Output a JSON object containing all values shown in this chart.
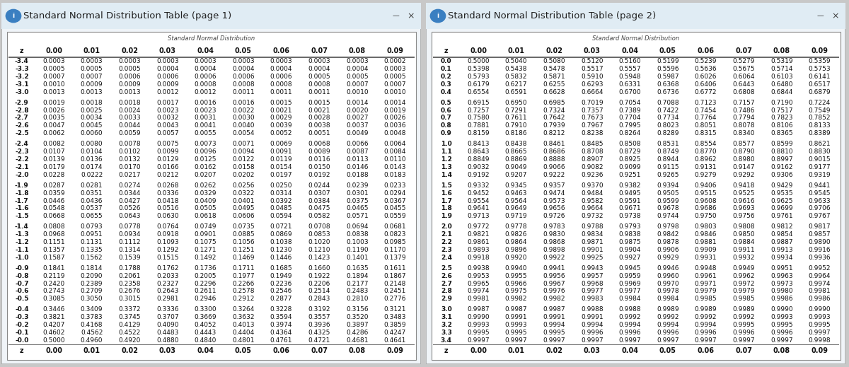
{
  "title1": "Standard Normal Distribution Table (page 1)",
  "title2": "Standard Normal Distribution Table (page 2)",
  "subtitle": "Standard Normal Distribution",
  "col_headers": [
    "z",
    "0.00",
    "0.01",
    "0.02",
    "0.03",
    "0.04",
    "0.05",
    "0.06",
    "0.07",
    "0.08",
    "0.09"
  ],
  "page1_rows": [
    [
      "-3.4",
      "0.0003",
      "0.0003",
      "0.0003",
      "0.0003",
      "0.0003",
      "0.0003",
      "0.0003",
      "0.0003",
      "0.0003",
      "0.0002"
    ],
    [
      "-3.3",
      "0.0005",
      "0.0005",
      "0.0005",
      "0.0004",
      "0.0004",
      "0.0004",
      "0.0004",
      "0.0004",
      "0.0004",
      "0.0003"
    ],
    [
      "-3.2",
      "0.0007",
      "0.0007",
      "0.0006",
      "0.0006",
      "0.0006",
      "0.0006",
      "0.0006",
      "0.0005",
      "0.0005",
      "0.0005"
    ],
    [
      "-3.1",
      "0.0010",
      "0.0009",
      "0.0009",
      "0.0009",
      "0.0008",
      "0.0008",
      "0.0008",
      "0.0008",
      "0.0007",
      "0.0007"
    ],
    [
      "-3.0",
      "0.0013",
      "0.0013",
      "0.0013",
      "0.0012",
      "0.0012",
      "0.0011",
      "0.0011",
      "0.0011",
      "0.0010",
      "0.0010"
    ],
    [
      "-2.9",
      "0.0019",
      "0.0018",
      "0.0018",
      "0.0017",
      "0.0016",
      "0.0016",
      "0.0015",
      "0.0015",
      "0.0014",
      "0.0014"
    ],
    [
      "-2.8",
      "0.0026",
      "0.0025",
      "0.0024",
      "0.0023",
      "0.0023",
      "0.0022",
      "0.0021",
      "0.0021",
      "0.0020",
      "0.0019"
    ],
    [
      "-2.7",
      "0.0035",
      "0.0034",
      "0.0033",
      "0.0032",
      "0.0031",
      "0.0030",
      "0.0029",
      "0.0028",
      "0.0027",
      "0.0026"
    ],
    [
      "-2.6",
      "0.0047",
      "0.0045",
      "0.0044",
      "0.0043",
      "0.0041",
      "0.0040",
      "0.0039",
      "0.0038",
      "0.0037",
      "0.0036"
    ],
    [
      "-2.5",
      "0.0062",
      "0.0060",
      "0.0059",
      "0.0057",
      "0.0055",
      "0.0054",
      "0.0052",
      "0.0051",
      "0.0049",
      "0.0048"
    ],
    [
      "-2.4",
      "0.0082",
      "0.0080",
      "0.0078",
      "0.0075",
      "0.0073",
      "0.0071",
      "0.0069",
      "0.0068",
      "0.0066",
      "0.0064"
    ],
    [
      "-2.3",
      "0.0107",
      "0.0104",
      "0.0102",
      "0.0099",
      "0.0096",
      "0.0094",
      "0.0091",
      "0.0089",
      "0.0087",
      "0.0084"
    ],
    [
      "-2.2",
      "0.0139",
      "0.0136",
      "0.0132",
      "0.0129",
      "0.0125",
      "0.0122",
      "0.0119",
      "0.0116",
      "0.0113",
      "0.0110"
    ],
    [
      "-2.1",
      "0.0179",
      "0.0174",
      "0.0170",
      "0.0166",
      "0.0162",
      "0.0158",
      "0.0154",
      "0.0150",
      "0.0146",
      "0.0143"
    ],
    [
      "-2.0",
      "0.0228",
      "0.0222",
      "0.0217",
      "0.0212",
      "0.0207",
      "0.0202",
      "0.0197",
      "0.0192",
      "0.0188",
      "0.0183"
    ],
    [
      "-1.9",
      "0.0287",
      "0.0281",
      "0.0274",
      "0.0268",
      "0.0262",
      "0.0256",
      "0.0250",
      "0.0244",
      "0.0239",
      "0.0233"
    ],
    [
      "-1.8",
      "0.0359",
      "0.0351",
      "0.0344",
      "0.0336",
      "0.0329",
      "0.0322",
      "0.0314",
      "0.0307",
      "0.0301",
      "0.0294"
    ],
    [
      "-1.7",
      "0.0446",
      "0.0436",
      "0.0427",
      "0.0418",
      "0.0409",
      "0.0401",
      "0.0392",
      "0.0384",
      "0.0375",
      "0.0367"
    ],
    [
      "-1.6",
      "0.0548",
      "0.0537",
      "0.0526",
      "0.0516",
      "0.0505",
      "0.0495",
      "0.0485",
      "0.0475",
      "0.0465",
      "0.0455"
    ],
    [
      "-1.5",
      "0.0668",
      "0.0655",
      "0.0643",
      "0.0630",
      "0.0618",
      "0.0606",
      "0.0594",
      "0.0582",
      "0.0571",
      "0.0559"
    ],
    [
      "-1.4",
      "0.0808",
      "0.0793",
      "0.0778",
      "0.0764",
      "0.0749",
      "0.0735",
      "0.0721",
      "0.0708",
      "0.0694",
      "0.0681"
    ],
    [
      "-1.3",
      "0.0968",
      "0.0951",
      "0.0934",
      "0.0918",
      "0.0901",
      "0.0885",
      "0.0869",
      "0.0853",
      "0.0838",
      "0.0823"
    ],
    [
      "-1.2",
      "0.1151",
      "0.1131",
      "0.1112",
      "0.1093",
      "0.1075",
      "0.1056",
      "0.1038",
      "0.1020",
      "0.1003",
      "0.0985"
    ],
    [
      "-1.1",
      "0.1357",
      "0.1335",
      "0.1314",
      "0.1292",
      "0.1271",
      "0.1251",
      "0.1230",
      "0.1210",
      "0.1190",
      "0.1170"
    ],
    [
      "-1.0",
      "0.1587",
      "0.1562",
      "0.1539",
      "0.1515",
      "0.1492",
      "0.1469",
      "0.1446",
      "0.1423",
      "0.1401",
      "0.1379"
    ],
    [
      "-0.9",
      "0.1841",
      "0.1814",
      "0.1788",
      "0.1762",
      "0.1736",
      "0.1711",
      "0.1685",
      "0.1660",
      "0.1635",
      "0.1611"
    ],
    [
      "-0.8",
      "0.2119",
      "0.2090",
      "0.2061",
      "0.2033",
      "0.2005",
      "0.1977",
      "0.1949",
      "0.1922",
      "0.1894",
      "0.1867"
    ],
    [
      "-0.7",
      "0.2420",
      "0.2389",
      "0.2358",
      "0.2327",
      "0.2296",
      "0.2266",
      "0.2236",
      "0.2206",
      "0.2177",
      "0.2148"
    ],
    [
      "-0.6",
      "0.2743",
      "0.2709",
      "0.2676",
      "0.2643",
      "0.2611",
      "0.2578",
      "0.2546",
      "0.2514",
      "0.2483",
      "0.2451"
    ],
    [
      "-0.5",
      "0.3085",
      "0.3050",
      "0.3015",
      "0.2981",
      "0.2946",
      "0.2912",
      "0.2877",
      "0.2843",
      "0.2810",
      "0.2776"
    ],
    [
      "-0.4",
      "0.3446",
      "0.3409",
      "0.3372",
      "0.3336",
      "0.3300",
      "0.3264",
      "0.3228",
      "0.3192",
      "0.3156",
      "0.3121"
    ],
    [
      "-0.3",
      "0.3821",
      "0.3783",
      "0.3745",
      "0.3707",
      "0.3669",
      "0.3632",
      "0.3594",
      "0.3557",
      "0.3520",
      "0.3483"
    ],
    [
      "-0.2",
      "0.4207",
      "0.4168",
      "0.4129",
      "0.4090",
      "0.4052",
      "0.4013",
      "0.3974",
      "0.3936",
      "0.3897",
      "0.3859"
    ],
    [
      "-0.1",
      "0.4602",
      "0.4562",
      "0.4522",
      "0.4483",
      "0.4443",
      "0.4404",
      "0.4364",
      "0.4325",
      "0.4286",
      "0.4247"
    ],
    [
      "-0.0",
      "0.5000",
      "0.4960",
      "0.4920",
      "0.4880",
      "0.4840",
      "0.4801",
      "0.4761",
      "0.4721",
      "0.4681",
      "0.4641"
    ]
  ],
  "page2_rows": [
    [
      "0.0",
      "0.5000",
      "0.5040",
      "0.5080",
      "0.5120",
      "0.5160",
      "0.5199",
      "0.5239",
      "0.5279",
      "0.5319",
      "0.5359"
    ],
    [
      "0.1",
      "0.5398",
      "0.5438",
      "0.5478",
      "0.5517",
      "0.5557",
      "0.5596",
      "0.5636",
      "0.5675",
      "0.5714",
      "0.5753"
    ],
    [
      "0.2",
      "0.5793",
      "0.5832",
      "0.5871",
      "0.5910",
      "0.5948",
      "0.5987",
      "0.6026",
      "0.6064",
      "0.6103",
      "0.6141"
    ],
    [
      "0.3",
      "0.6179",
      "0.6217",
      "0.6255",
      "0.6293",
      "0.6331",
      "0.6368",
      "0.6406",
      "0.6443",
      "0.6480",
      "0.6517"
    ],
    [
      "0.4",
      "0.6554",
      "0.6591",
      "0.6628",
      "0.6664",
      "0.6700",
      "0.6736",
      "0.6772",
      "0.6808",
      "0.6844",
      "0.6879"
    ],
    [
      "0.5",
      "0.6915",
      "0.6950",
      "0.6985",
      "0.7019",
      "0.7054",
      "0.7088",
      "0.7123",
      "0.7157",
      "0.7190",
      "0.7224"
    ],
    [
      "0.6",
      "0.7257",
      "0.7291",
      "0.7324",
      "0.7357",
      "0.7389",
      "0.7422",
      "0.7454",
      "0.7486",
      "0.7517",
      "0.7549"
    ],
    [
      "0.7",
      "0.7580",
      "0.7611",
      "0.7642",
      "0.7673",
      "0.7704",
      "0.7734",
      "0.7764",
      "0.7794",
      "0.7823",
      "0.7852"
    ],
    [
      "0.8",
      "0.7881",
      "0.7910",
      "0.7939",
      "0.7967",
      "0.7995",
      "0.8023",
      "0.8051",
      "0.8078",
      "0.8106",
      "0.8133"
    ],
    [
      "0.9",
      "0.8159",
      "0.8186",
      "0.8212",
      "0.8238",
      "0.8264",
      "0.8289",
      "0.8315",
      "0.8340",
      "0.8365",
      "0.8389"
    ],
    [
      "1.0",
      "0.8413",
      "0.8438",
      "0.8461",
      "0.8485",
      "0.8508",
      "0.8531",
      "0.8554",
      "0.8577",
      "0.8599",
      "0.8621"
    ],
    [
      "1.1",
      "0.8643",
      "0.8665",
      "0.8686",
      "0.8708",
      "0.8729",
      "0.8749",
      "0.8770",
      "0.8790",
      "0.8810",
      "0.8830"
    ],
    [
      "1.2",
      "0.8849",
      "0.8869",
      "0.8888",
      "0.8907",
      "0.8925",
      "0.8944",
      "0.8962",
      "0.8980",
      "0.8997",
      "0.9015"
    ],
    [
      "1.3",
      "0.9032",
      "0.9049",
      "0.9066",
      "0.9082",
      "0.9099",
      "0.9115",
      "0.9131",
      "0.9147",
      "0.9162",
      "0.9177"
    ],
    [
      "1.4",
      "0.9192",
      "0.9207",
      "0.9222",
      "0.9236",
      "0.9251",
      "0.9265",
      "0.9279",
      "0.9292",
      "0.9306",
      "0.9319"
    ],
    [
      "1.5",
      "0.9332",
      "0.9345",
      "0.9357",
      "0.9370",
      "0.9382",
      "0.9394",
      "0.9406",
      "0.9418",
      "0.9429",
      "0.9441"
    ],
    [
      "1.6",
      "0.9452",
      "0.9463",
      "0.9474",
      "0.9484",
      "0.9495",
      "0.9505",
      "0.9515",
      "0.9525",
      "0.9535",
      "0.9545"
    ],
    [
      "1.7",
      "0.9554",
      "0.9564",
      "0.9573",
      "0.9582",
      "0.9591",
      "0.9599",
      "0.9608",
      "0.9616",
      "0.9625",
      "0.9633"
    ],
    [
      "1.8",
      "0.9641",
      "0.9649",
      "0.9656",
      "0.9664",
      "0.9671",
      "0.9678",
      "0.9686",
      "0.9693",
      "0.9699",
      "0.9706"
    ],
    [
      "1.9",
      "0.9713",
      "0.9719",
      "0.9726",
      "0.9732",
      "0.9738",
      "0.9744",
      "0.9750",
      "0.9756",
      "0.9761",
      "0.9767"
    ],
    [
      "2.0",
      "0.9772",
      "0.9778",
      "0.9783",
      "0.9788",
      "0.9793",
      "0.9798",
      "0.9803",
      "0.9808",
      "0.9812",
      "0.9817"
    ],
    [
      "2.1",
      "0.9821",
      "0.9826",
      "0.9830",
      "0.9834",
      "0.9838",
      "0.9842",
      "0.9846",
      "0.9850",
      "0.9854",
      "0.9857"
    ],
    [
      "2.2",
      "0.9861",
      "0.9864",
      "0.9868",
      "0.9871",
      "0.9875",
      "0.9878",
      "0.9881",
      "0.9884",
      "0.9887",
      "0.9890"
    ],
    [
      "2.3",
      "0.9893",
      "0.9896",
      "0.9898",
      "0.9901",
      "0.9904",
      "0.9906",
      "0.9909",
      "0.9911",
      "0.9913",
      "0.9916"
    ],
    [
      "2.4",
      "0.9918",
      "0.9920",
      "0.9922",
      "0.9925",
      "0.9927",
      "0.9929",
      "0.9931",
      "0.9932",
      "0.9934",
      "0.9936"
    ],
    [
      "2.5",
      "0.9938",
      "0.9940",
      "0.9941",
      "0.9943",
      "0.9945",
      "0.9946",
      "0.9948",
      "0.9949",
      "0.9951",
      "0.9952"
    ],
    [
      "2.6",
      "0.9953",
      "0.9955",
      "0.9956",
      "0.9957",
      "0.9959",
      "0.9960",
      "0.9961",
      "0.9962",
      "0.9963",
      "0.9964"
    ],
    [
      "2.7",
      "0.9965",
      "0.9966",
      "0.9967",
      "0.9968",
      "0.9969",
      "0.9970",
      "0.9971",
      "0.9972",
      "0.9973",
      "0.9974"
    ],
    [
      "2.8",
      "0.9974",
      "0.9975",
      "0.9976",
      "0.9977",
      "0.9977",
      "0.9978",
      "0.9979",
      "0.9979",
      "0.9980",
      "0.9981"
    ],
    [
      "2.9",
      "0.9981",
      "0.9982",
      "0.9982",
      "0.9983",
      "0.9984",
      "0.9984",
      "0.9985",
      "0.9985",
      "0.9986",
      "0.9986"
    ],
    [
      "3.0",
      "0.9987",
      "0.9987",
      "0.9987",
      "0.9988",
      "0.9988",
      "0.9989",
      "0.9989",
      "0.9989",
      "0.9990",
      "0.9990"
    ],
    [
      "3.1",
      "0.9990",
      "0.9991",
      "0.9991",
      "0.9991",
      "0.9992",
      "0.9992",
      "0.9992",
      "0.9992",
      "0.9993",
      "0.9993"
    ],
    [
      "3.2",
      "0.9993",
      "0.9993",
      "0.9994",
      "0.9994",
      "0.9994",
      "0.9994",
      "0.9994",
      "0.9995",
      "0.9995",
      "0.9995"
    ],
    [
      "3.3",
      "0.9995",
      "0.9995",
      "0.9995",
      "0.9996",
      "0.9996",
      "0.9996",
      "0.9996",
      "0.9996",
      "0.9996",
      "0.9997"
    ],
    [
      "3.4",
      "0.9997",
      "0.9997",
      "0.9997",
      "0.9997",
      "0.9997",
      "0.9997",
      "0.9997",
      "0.9997",
      "0.9997",
      "0.9998"
    ]
  ],
  "outer_bg": "#c8c8c8",
  "panel_bg": "#f0f4f8",
  "titlebar_bg": "#e0ecf4",
  "table_bg": "#ffffff",
  "border_color": "#999999",
  "title_color": "#222222",
  "icon_color": "#3a7fc1",
  "header_fontsize": 7.0,
  "cell_fontsize": 6.5,
  "subtitle_fontsize": 6.0,
  "title_fontsize": 9.5
}
